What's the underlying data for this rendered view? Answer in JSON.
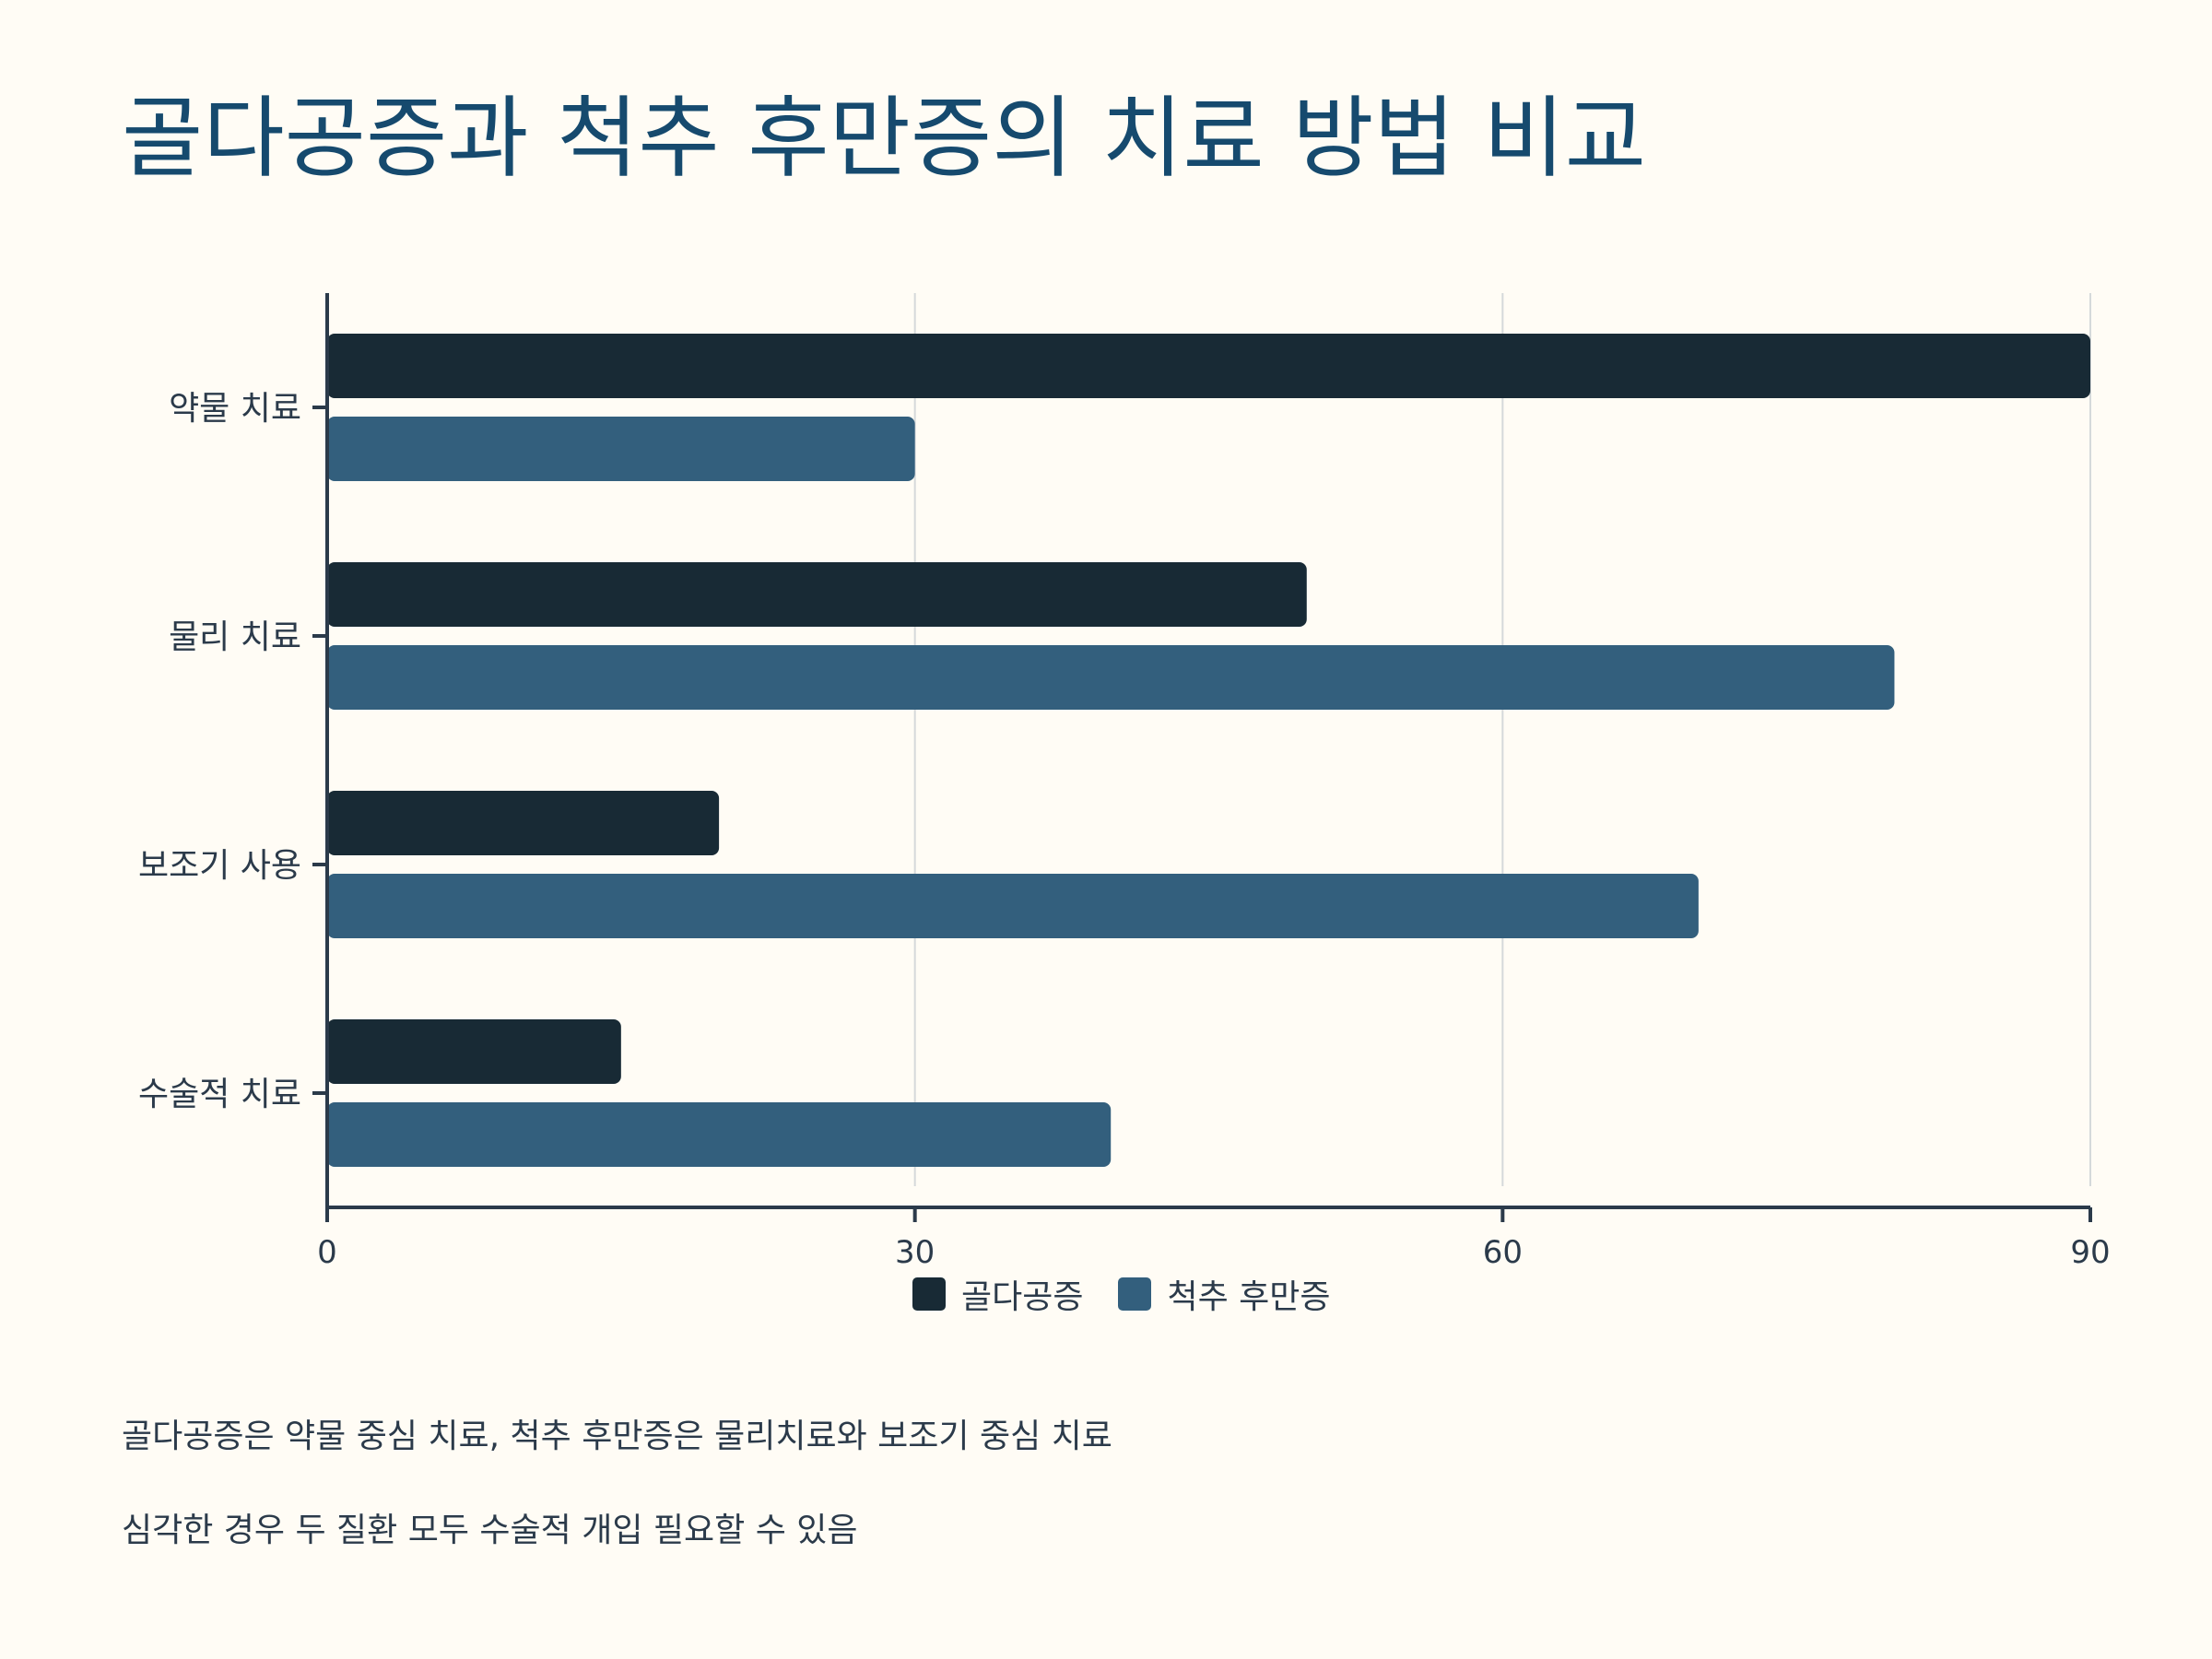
{
  "title": "골다공증과 척추 후만증의 치료 방법 비교",
  "colors": {
    "background": "#fffcf5",
    "title": "#164a6e",
    "axis": "#2b3a4a",
    "grid": "#d5d9da"
  },
  "legend": {
    "items": [
      {
        "label": "골다공증",
        "color": "#182a35"
      },
      {
        "label": "척추 후만증",
        "color": "#335f7d"
      }
    ]
  },
  "notes": [
    "골다공증은 약물 중심 치료, 척추 후만증은 물리치료와 보조기 중심 치료",
    "심각한 경우 두 질환 모두 수술적 개입 필요할 수 있음"
  ],
  "chart_data": {
    "type": "bar",
    "orientation": "horizontal",
    "categories": [
      "약물 치료",
      "물리 치료",
      "보조기 사용",
      "수술적 치료"
    ],
    "series": [
      {
        "name": "골다공증",
        "color": "#182a35",
        "values": [
          90,
          50,
          20,
          15
        ]
      },
      {
        "name": "척추 후만증",
        "color": "#335f7d",
        "values": [
          30,
          80,
          70,
          40
        ]
      }
    ],
    "xlim": [
      0,
      90
    ],
    "xticks": [
      0,
      30,
      60,
      90
    ],
    "xlabel": "",
    "ylabel": "",
    "grid": true,
    "legend_position": "bottom-center"
  }
}
